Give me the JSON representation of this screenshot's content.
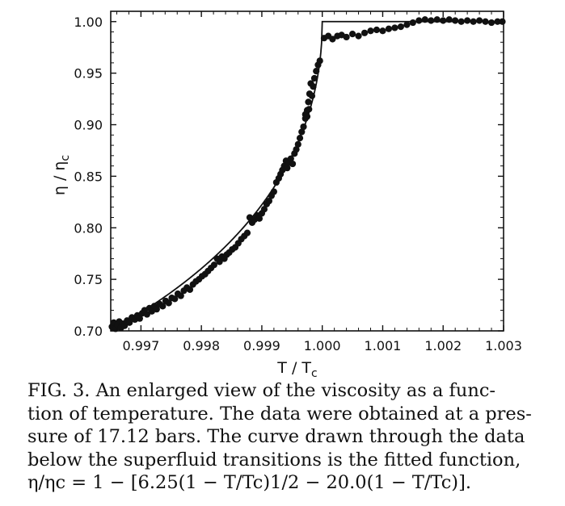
{
  "chart_data": {
    "type": "scatter",
    "xlabel": "T / T",
    "xlabel_sub": "c",
    "ylabel": "η / η",
    "ylabel_sub": "c",
    "xlim": [
      0.9965,
      1.003
    ],
    "ylim": [
      0.7,
      1.01
    ],
    "xticks": [
      0.997,
      0.998,
      0.999,
      1.0,
      1.001,
      1.002,
      1.003
    ],
    "xtick_labels": [
      "0.997",
      "0.998",
      "0.999",
      "1.000",
      "1.001",
      "1.002",
      "1.003"
    ],
    "yticks": [
      0.7,
      0.75,
      0.8,
      0.85,
      0.9,
      0.95,
      1.0
    ],
    "ytick_labels": [
      "0.70",
      "0.75",
      "0.80",
      "0.85",
      "0.90",
      "0.95",
      "1.00"
    ],
    "grid": false,
    "curve": {
      "formula": "η/η_c = 1 − [6.25(1 − T/T_c)^(1/2) − 20.0(1 − T/T_c)] for T < T_c; 1.00 for T ≥ T_c"
    },
    "points": [
      [
        0.99652,
        0.704
      ],
      [
        0.99655,
        0.708
      ],
      [
        0.99658,
        0.702
      ],
      [
        0.99661,
        0.706
      ],
      [
        0.99664,
        0.709
      ],
      [
        0.99667,
        0.703
      ],
      [
        0.9967,
        0.707
      ],
      [
        0.99673,
        0.705
      ],
      [
        0.99677,
        0.71
      ],
      [
        0.99681,
        0.708
      ],
      [
        0.99685,
        0.713
      ],
      [
        0.9969,
        0.711
      ],
      [
        0.99694,
        0.715
      ],
      [
        0.99698,
        0.712
      ],
      [
        0.99702,
        0.717
      ],
      [
        0.99706,
        0.72
      ],
      [
        0.9971,
        0.716
      ],
      [
        0.99714,
        0.722
      ],
      [
        0.99718,
        0.719
      ],
      [
        0.99722,
        0.724
      ],
      [
        0.99726,
        0.721
      ],
      [
        0.99731,
        0.726
      ],
      [
        0.99736,
        0.724
      ],
      [
        0.99741,
        0.729
      ],
      [
        0.99746,
        0.727
      ],
      [
        0.99751,
        0.732
      ],
      [
        0.99756,
        0.731
      ],
      [
        0.99761,
        0.736
      ],
      [
        0.99766,
        0.734
      ],
      [
        0.99771,
        0.739
      ],
      [
        0.99776,
        0.742
      ],
      [
        0.99781,
        0.74
      ],
      [
        0.99786,
        0.745
      ],
      [
        0.99791,
        0.748
      ],
      [
        0.99796,
        0.75
      ],
      [
        0.99801,
        0.753
      ],
      [
        0.99806,
        0.755
      ],
      [
        0.99811,
        0.758
      ],
      [
        0.99816,
        0.761
      ],
      [
        0.99821,
        0.764
      ],
      [
        0.99826,
        0.77
      ],
      [
        0.9983,
        0.767
      ],
      [
        0.99834,
        0.772
      ],
      [
        0.99838,
        0.77
      ],
      [
        0.99842,
        0.774
      ],
      [
        0.99846,
        0.776
      ],
      [
        0.99851,
        0.779
      ],
      [
        0.99856,
        0.781
      ],
      [
        0.99861,
        0.785
      ],
      [
        0.99866,
        0.789
      ],
      [
        0.99871,
        0.792
      ],
      [
        0.99876,
        0.795
      ],
      [
        0.9988,
        0.81
      ],
      [
        0.99884,
        0.805
      ],
      [
        0.99888,
        0.808
      ],
      [
        0.99892,
        0.812
      ],
      [
        0.99896,
        0.809
      ],
      [
        0.999,
        0.814
      ],
      [
        0.99904,
        0.818
      ],
      [
        0.99908,
        0.823
      ],
      [
        0.99912,
        0.826
      ],
      [
        0.99916,
        0.831
      ],
      [
        0.9992,
        0.835
      ],
      [
        0.99924,
        0.844
      ],
      [
        0.99928,
        0.848
      ],
      [
        0.99931,
        0.852
      ],
      [
        0.99934,
        0.856
      ],
      [
        0.99937,
        0.86
      ],
      [
        0.9994,
        0.865
      ],
      [
        0.99942,
        0.858
      ],
      [
        0.99945,
        0.863
      ],
      [
        0.99948,
        0.867
      ],
      [
        0.99951,
        0.862
      ],
      [
        0.99954,
        0.872
      ],
      [
        0.99957,
        0.876
      ],
      [
        0.9996,
        0.881
      ],
      [
        0.99963,
        0.887
      ],
      [
        0.99966,
        0.893
      ],
      [
        0.99969,
        0.898
      ],
      [
        0.99972,
        0.906
      ],
      [
        0.99975,
        0.914
      ],
      [
        0.99977,
        0.922
      ],
      [
        0.99979,
        0.93
      ],
      [
        0.99981,
        0.94
      ],
      [
        0.99983,
        0.928
      ],
      [
        0.99985,
        0.937
      ],
      [
        0.99987,
        0.945
      ],
      [
        0.9999,
        0.952
      ],
      [
        0.99993,
        0.958
      ],
      [
        0.99996,
        0.962
      ],
      [
        0.99972,
        0.91
      ],
      [
        0.99975,
        0.908
      ],
      [
        0.99978,
        0.915
      ],
      [
        1.00003,
        0.984
      ],
      [
        1.0001,
        0.986
      ],
      [
        1.00017,
        0.983
      ],
      [
        1.00025,
        0.986
      ],
      [
        1.00032,
        0.987
      ],
      [
        1.0004,
        0.985
      ],
      [
        1.0005,
        0.988
      ],
      [
        1.0006,
        0.986
      ],
      [
        1.0007,
        0.989
      ],
      [
        1.0008,
        0.991
      ],
      [
        1.0009,
        0.992
      ],
      [
        1.001,
        0.991
      ],
      [
        1.0011,
        0.993
      ],
      [
        1.0012,
        0.994
      ],
      [
        1.0013,
        0.995
      ],
      [
        1.0014,
        0.997
      ],
      [
        1.0015,
        0.999
      ],
      [
        1.0016,
        1.001
      ],
      [
        1.0017,
        1.002
      ],
      [
        1.0018,
        1.001
      ],
      [
        1.0019,
        1.002
      ],
      [
        1.002,
        1.001
      ],
      [
        1.0021,
        1.002
      ],
      [
        1.0022,
        1.001
      ],
      [
        1.0023,
        1.0
      ],
      [
        1.0024,
        1.001
      ],
      [
        1.0025,
        1.0
      ],
      [
        1.0026,
        1.001
      ],
      [
        1.0027,
        1.0
      ],
      [
        1.0028,
        0.999
      ],
      [
        1.0029,
        1.0
      ],
      [
        1.00298,
        1.0
      ]
    ]
  },
  "caption": {
    "line1": "FIG. 3.  An enlarged view of the viscosity as a func-",
    "line2": "tion of temperature.  The data were obtained at a pres-",
    "line3": "sure of 17.12 bars.  The curve drawn through the data",
    "line4": "below the superfluid transitions is the fitted function,",
    "formula": "η/ηc = 1 − [6.25(1 − T/Tc)1/2 − 20.0(1 − T/Tc)]."
  }
}
